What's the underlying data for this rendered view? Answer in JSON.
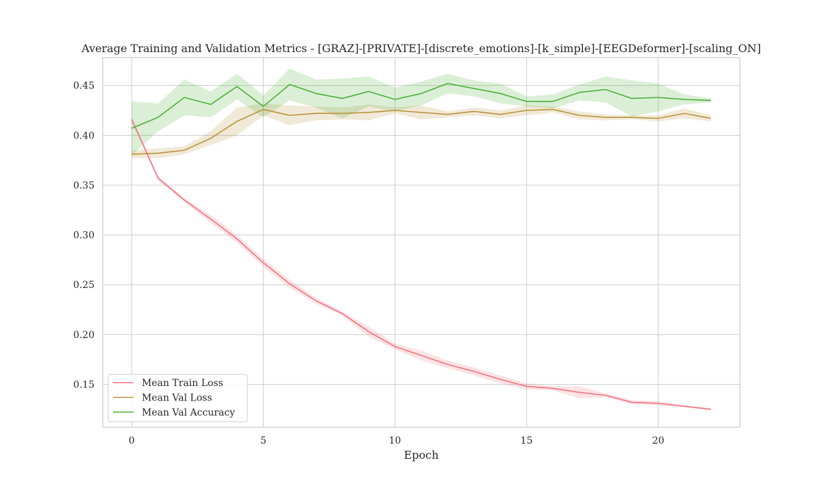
{
  "chart_data": {
    "type": "line",
    "title": "Average Training and Validation Metrics - [GRAZ]-[PRIVATE]-[discrete_emotions]-[k_simple]-[EEGDeformer]-[scaling_ON]",
    "xlabel": "Epoch",
    "ylabel": "",
    "xlim": [
      -1.1,
      23.1
    ],
    "ylim": [
      0.107,
      0.478
    ],
    "xticks": [
      0,
      5,
      10,
      15,
      20
    ],
    "yticks": [
      0.15,
      0.2,
      0.25,
      0.3,
      0.35,
      0.4,
      0.45
    ],
    "xtick_labels": [
      "0",
      "5",
      "10",
      "15",
      "20"
    ],
    "ytick_labels": [
      "0.15",
      "0.20",
      "0.25",
      "0.30",
      "0.35",
      "0.40",
      "0.45"
    ],
    "grid": true,
    "legend_position": "lower-left",
    "x": [
      0,
      1,
      2,
      3,
      4,
      5,
      6,
      7,
      8,
      9,
      10,
      11,
      12,
      13,
      14,
      15,
      16,
      17,
      18,
      19,
      20,
      21,
      22
    ],
    "series": [
      {
        "name": "Mean Train Loss",
        "color": "#f0727f",
        "values": [
          0.416,
          0.357,
          0.335,
          0.316,
          0.296,
          0.272,
          0.251,
          0.234,
          0.221,
          0.203,
          0.188,
          0.179,
          0.17,
          0.163,
          0.155,
          0.148,
          0.146,
          0.142,
          0.139,
          0.132,
          0.131,
          0.128,
          0.125
        ],
        "band_upper": [
          0.418,
          0.359,
          0.337,
          0.32,
          0.3,
          0.276,
          0.255,
          0.237,
          0.223,
          0.208,
          0.191,
          0.184,
          0.174,
          0.167,
          0.159,
          0.151,
          0.148,
          0.148,
          0.141,
          0.134,
          0.133,
          0.129,
          0.126
        ],
        "band_lower": [
          0.414,
          0.355,
          0.333,
          0.312,
          0.292,
          0.268,
          0.247,
          0.231,
          0.219,
          0.198,
          0.185,
          0.174,
          0.166,
          0.159,
          0.151,
          0.145,
          0.144,
          0.136,
          0.137,
          0.13,
          0.129,
          0.127,
          0.124
        ]
      },
      {
        "name": "Mean Val Loss",
        "color": "#b8923a",
        "values": [
          0.381,
          0.382,
          0.385,
          0.397,
          0.414,
          0.426,
          0.42,
          0.422,
          0.422,
          0.423,
          0.425,
          0.423,
          0.421,
          0.424,
          0.421,
          0.425,
          0.426,
          0.42,
          0.418,
          0.418,
          0.417,
          0.422,
          0.417
        ],
        "band_upper": [
          0.385,
          0.387,
          0.389,
          0.404,
          0.428,
          0.432,
          0.43,
          0.429,
          0.428,
          0.431,
          0.428,
          0.43,
          0.424,
          0.428,
          0.425,
          0.43,
          0.429,
          0.424,
          0.421,
          0.42,
          0.42,
          0.427,
          0.42
        ],
        "band_lower": [
          0.377,
          0.377,
          0.381,
          0.39,
          0.4,
          0.42,
          0.41,
          0.415,
          0.416,
          0.415,
          0.422,
          0.416,
          0.418,
          0.42,
          0.417,
          0.42,
          0.423,
          0.416,
          0.415,
          0.416,
          0.414,
          0.417,
          0.414
        ]
      },
      {
        "name": "Mean Val Accuracy",
        "color": "#4daf37",
        "values": [
          0.407,
          0.418,
          0.438,
          0.431,
          0.449,
          0.429,
          0.451,
          0.442,
          0.437,
          0.444,
          0.436,
          0.442,
          0.452,
          0.447,
          0.442,
          0.434,
          0.434,
          0.443,
          0.446,
          0.437,
          0.438,
          0.436,
          0.435
        ],
        "band_upper": [
          0.434,
          0.432,
          0.456,
          0.444,
          0.462,
          0.44,
          0.467,
          0.456,
          0.457,
          0.459,
          0.448,
          0.454,
          0.462,
          0.455,
          0.452,
          0.439,
          0.441,
          0.451,
          0.459,
          0.455,
          0.452,
          0.441,
          0.437
        ],
        "band_lower": [
          0.38,
          0.404,
          0.42,
          0.418,
          0.436,
          0.418,
          0.435,
          0.428,
          0.417,
          0.429,
          0.424,
          0.43,
          0.442,
          0.439,
          0.432,
          0.429,
          0.427,
          0.435,
          0.433,
          0.419,
          0.424,
          0.431,
          0.433
        ]
      }
    ]
  }
}
